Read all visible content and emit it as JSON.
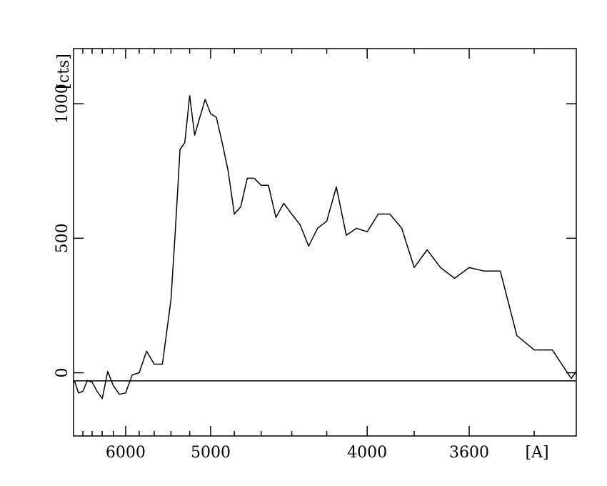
{
  "chart_data": {
    "type": "line",
    "xlabel": "[A]",
    "ylabel": "[cts]",
    "xscale": "inverse-square",
    "xlim": [
      7020,
      3287
    ],
    "xticks": [
      6000,
      5000,
      4000,
      3600
    ],
    "xminorticks": [
      6800,
      6600,
      6400,
      6200,
      5800,
      5600,
      5400,
      5200,
      4800,
      4600,
      4400,
      4200,
      3800,
      3400
    ],
    "ylim": [
      -235,
      1205
    ],
    "yticks": [
      0,
      500,
      1000
    ],
    "reference_line": -30,
    "color": "#000000",
    "x": [
      7000,
      6900,
      6800,
      6700,
      6600,
      6500,
      6400,
      6300,
      6200,
      6100,
      6000,
      5900,
      5800,
      5700,
      5600,
      5500,
      5400,
      5350,
      5300,
      5250,
      5200,
      5150,
      5100,
      5050,
      5000,
      4950,
      4900,
      4850,
      4800,
      4750,
      4700,
      4650,
      4600,
      4550,
      4500,
      4450,
      4400,
      4350,
      4300,
      4250,
      4200,
      4150,
      4100,
      4050,
      4000,
      3950,
      3900,
      3850,
      3800,
      3750,
      3700,
      3650,
      3600,
      3550,
      3500,
      3450,
      3400,
      3350,
      3300,
      3287
    ],
    "values": [
      -29,
      -75,
      -69,
      -29,
      -35,
      -69,
      -96,
      5,
      -48,
      -80,
      -75,
      -8,
      0,
      80,
      32,
      32,
      271,
      537,
      830,
      856,
      1030,
      883,
      950,
      1016,
      963,
      950,
      856,
      750,
      590,
      617,
      723,
      723,
      697,
      697,
      577,
      630,
      590,
      550,
      471,
      537,
      564,
      691,
      511,
      537,
      524,
      590,
      590,
      537,
      391,
      457,
      391,
      351,
      391,
      378,
      378,
      138,
      85,
      85,
      -21,
      5
    ]
  }
}
